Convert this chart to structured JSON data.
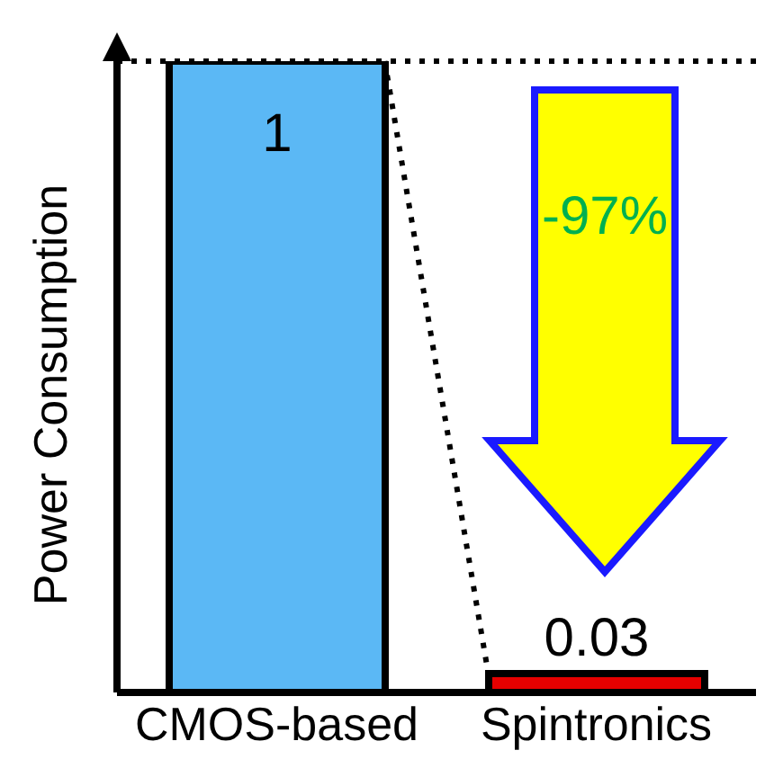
{
  "chart_data": {
    "type": "bar",
    "ylabel": "Power Consumption",
    "categories": [
      "CMOS-based",
      "Spintronics"
    ],
    "values": [
      1,
      0.03
    ],
    "colors": [
      "#5bb8f5",
      "#e60000"
    ],
    "data_labels": true,
    "annotations": [
      "-97%"
    ],
    "ref_lines": [
      {
        "axis": "y",
        "value": 1,
        "line_style": "dotted"
      }
    ]
  }
}
